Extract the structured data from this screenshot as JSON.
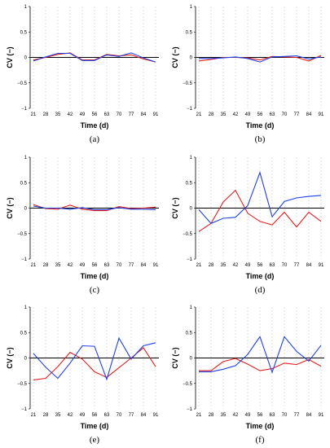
{
  "figure": {
    "series_colors": {
      "red": "#e02020",
      "blue": "#2040e0"
    },
    "panels_label": "6-panel grid (3 rows x 2 columns)"
  },
  "chart_data": [
    {
      "panel": "(a)",
      "type": "line",
      "x": [
        21,
        28,
        35,
        42,
        49,
        56,
        63,
        70,
        77,
        84,
        91
      ],
      "xlabel": "Time (d)",
      "ylabel": "CV (−)",
      "ylim": [
        -1,
        1
      ],
      "yticks": [
        -1,
        -0.5,
        0,
        0.5,
        1
      ],
      "yticklabels": [
        "−1",
        "−0.5",
        "0",
        "0.5",
        "1"
      ],
      "grid": "vertical dashed",
      "series": [
        {
          "color": "#e02020",
          "values": [
            -0.05,
            0.0,
            0.06,
            0.09,
            -0.05,
            -0.05,
            0.06,
            0.03,
            0.05,
            -0.03,
            -0.09
          ]
        },
        {
          "color": "#2040e0",
          "values": [
            -0.07,
            0.01,
            0.08,
            0.08,
            -0.06,
            -0.06,
            0.05,
            0.02,
            0.09,
            -0.01,
            -0.09
          ]
        }
      ]
    },
    {
      "panel": "(b)",
      "type": "line",
      "x": [
        21,
        28,
        35,
        42,
        49,
        56,
        63,
        70,
        77,
        84,
        91
      ],
      "xlabel": "Time (d)",
      "ylabel": "CV (−)",
      "ylim": [
        -1,
        1
      ],
      "yticks": [
        -1,
        -0.5,
        0,
        0.5,
        1
      ],
      "yticklabels": [
        "−1",
        "−0.5",
        "0",
        "0.5",
        "1"
      ],
      "grid": "vertical dashed",
      "series": [
        {
          "color": "#e02020",
          "values": [
            -0.07,
            -0.04,
            0.0,
            0.0,
            -0.01,
            -0.05,
            0.02,
            0.01,
            0.0,
            -0.07,
            0.04
          ]
        },
        {
          "color": "#2040e0",
          "values": [
            -0.02,
            -0.02,
            -0.01,
            0.01,
            -0.02,
            -0.09,
            0.01,
            0.02,
            0.03,
            -0.03,
            0.01
          ]
        }
      ]
    },
    {
      "panel": "(c)",
      "type": "line",
      "x": [
        21,
        28,
        35,
        42,
        49,
        56,
        63,
        70,
        77,
        84,
        91
      ],
      "xlabel": "Time (d)",
      "ylabel": "CV (−)",
      "ylim": [
        -1,
        1
      ],
      "yticks": [
        -1,
        -0.5,
        0,
        0.5,
        1
      ],
      "yticklabels": [
        "−1",
        "−0.5",
        "0",
        "0.5",
        "1"
      ],
      "grid": "vertical dashed",
      "series": [
        {
          "color": "#e02020",
          "values": [
            0.07,
            -0.01,
            -0.02,
            0.06,
            -0.02,
            -0.05,
            -0.05,
            0.03,
            -0.01,
            0.0,
            0.02
          ]
        },
        {
          "color": "#2040e0",
          "values": [
            0.04,
            0.0,
            0.0,
            -0.02,
            0.01,
            -0.03,
            -0.03,
            0.01,
            -0.02,
            -0.02,
            -0.03
          ]
        }
      ]
    },
    {
      "panel": "(d)",
      "type": "line",
      "x": [
        21,
        28,
        35,
        42,
        49,
        56,
        63,
        70,
        77,
        84,
        91
      ],
      "xlabel": "Time (d)",
      "ylabel": "CV (−)",
      "ylim": [
        -1,
        1
      ],
      "yticks": [
        -1,
        -0.5,
        0,
        0.5,
        1
      ],
      "yticklabels": [
        "−1",
        "−0.5",
        "0",
        "0.5",
        "1"
      ],
      "grid": "vertical dashed",
      "series": [
        {
          "color": "#e02020",
          "values": [
            -0.46,
            -0.3,
            0.12,
            0.35,
            -0.1,
            -0.26,
            -0.33,
            -0.08,
            -0.37,
            -0.08,
            -0.26
          ]
        },
        {
          "color": "#2040e0",
          "values": [
            -0.03,
            -0.3,
            -0.2,
            -0.18,
            0.05,
            0.7,
            -0.17,
            0.13,
            0.2,
            0.23,
            0.25
          ]
        }
      ]
    },
    {
      "panel": "(e)",
      "type": "line",
      "x": [
        21,
        28,
        35,
        42,
        49,
        56,
        63,
        70,
        77,
        84,
        91
      ],
      "xlabel": "Time (d)",
      "ylabel": "CV (−)",
      "ylim": [
        -1,
        1
      ],
      "yticks": [
        -1,
        -0.5,
        0,
        0.5,
        1
      ],
      "yticklabels": [
        "−1",
        "−0.5",
        "0",
        "0.5",
        "1"
      ],
      "grid": "vertical dashed",
      "series": [
        {
          "color": "#e02020",
          "values": [
            -0.43,
            -0.4,
            -0.17,
            0.11,
            -0.02,
            -0.27,
            -0.38,
            -0.19,
            0.0,
            0.2,
            -0.17
          ]
        },
        {
          "color": "#2040e0",
          "values": [
            0.09,
            -0.18,
            -0.4,
            -0.1,
            0.24,
            0.23,
            -0.42,
            0.39,
            -0.02,
            0.24,
            0.3
          ]
        }
      ]
    },
    {
      "panel": "(f)",
      "type": "line",
      "x": [
        21,
        28,
        35,
        42,
        49,
        56,
        63,
        70,
        77,
        84,
        91
      ],
      "xlabel": "Time (d)",
      "ylabel": "CV (−)",
      "ylim": [
        -1,
        1
      ],
      "yticks": [
        -1,
        -0.5,
        0,
        0.5,
        1
      ],
      "yticklabels": [
        "−1",
        "−0.5",
        "0",
        "0.5",
        "1"
      ],
      "grid": "vertical dashed",
      "series": [
        {
          "color": "#e02020",
          "values": [
            -0.25,
            -0.25,
            -0.07,
            -0.01,
            -0.12,
            -0.25,
            -0.21,
            -0.1,
            -0.13,
            -0.03,
            -0.16
          ]
        },
        {
          "color": "#2040e0",
          "values": [
            -0.27,
            -0.27,
            -0.22,
            -0.15,
            0.07,
            0.42,
            -0.28,
            0.42,
            0.13,
            -0.06,
            0.25
          ]
        }
      ]
    }
  ]
}
